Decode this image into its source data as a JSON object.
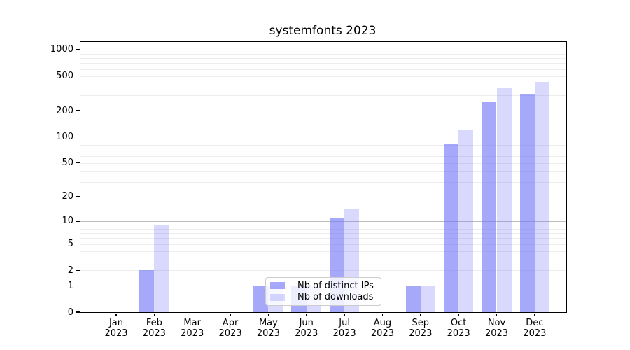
{
  "chart_data": {
    "type": "bar",
    "title": "systemfonts 2023",
    "categories": [
      "Jan 2023",
      "Feb 2023",
      "Mar 2023",
      "Apr 2023",
      "May 2023",
      "Jun 2023",
      "Jul 2023",
      "Aug 2023",
      "Sep 2023",
      "Oct 2023",
      "Nov 2023",
      "Dec 2023"
    ],
    "series": [
      {
        "name": "Nb of distinct IPs",
        "color": "rgba(111,116,245,0.62)",
        "values": [
          0,
          2,
          0,
          0,
          1,
          1,
          11,
          0,
          1,
          82,
          250,
          310
        ]
      },
      {
        "name": "Nb of downloads",
        "color": "rgba(111,116,245,0.27)",
        "values": [
          0,
          9,
          0,
          0,
          1,
          1,
          14,
          0,
          1,
          120,
          365,
          425
        ]
      }
    ],
    "xlabel": "",
    "ylabel": "",
    "y_scale": "log10(1+x)",
    "ylim": [
      0,
      1250
    ],
    "y_ticks": [
      0,
      1,
      2,
      5,
      10,
      20,
      50,
      100,
      200,
      500,
      1000
    ],
    "y_major_gridlines": [
      1,
      10,
      100,
      1000
    ],
    "grid": "horizontal",
    "legend_position": "inside lower-center-left",
    "colors": {
      "bar_dark_on_white": "#a6a9fb",
      "bar_light_on_white": "#d7d9fa",
      "major_grid": "#bdbdbd",
      "minor_grid": "#ececec",
      "spine": "#000000",
      "text": "#000000",
      "legend_border": "#cccccc",
      "legend_bg": "rgba(255,255,255,0.8)"
    }
  }
}
